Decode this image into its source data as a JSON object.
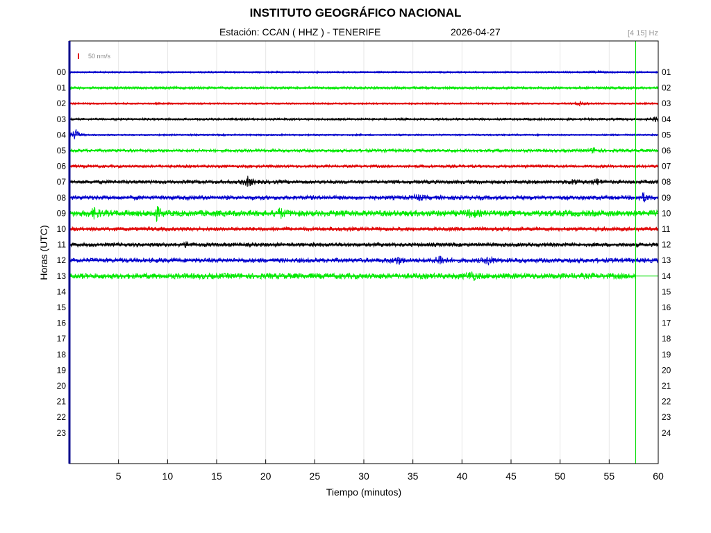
{
  "header": {
    "title": "INSTITUTO GEOGRÁFICO NACIONAL",
    "station": "Estación:  CCAN ( HHZ ) - TENERIFE",
    "date": "2026-04-27",
    "band": "[4 15] Hz",
    "scale": "50 nm/s"
  },
  "chart_data": {
    "type": "line",
    "subtype": "helicorder",
    "xlabel": "Tiempo (minutos)",
    "ylabel": "Horas (UTC)",
    "xlim": [
      0,
      60
    ],
    "x_ticks": [
      5,
      10,
      15,
      20,
      25,
      30,
      35,
      40,
      45,
      50,
      55,
      60
    ],
    "left_hour_labels": [
      "00",
      "01",
      "02",
      "03",
      "04",
      "05",
      "06",
      "07",
      "08",
      "09",
      "10",
      "11",
      "12",
      "13",
      "14",
      "15",
      "16",
      "17",
      "18",
      "19",
      "20",
      "21",
      "22",
      "23"
    ],
    "right_hour_labels": [
      "01",
      "02",
      "03",
      "04",
      "05",
      "06",
      "07",
      "08",
      "09",
      "10",
      "11",
      "12",
      "13",
      "14",
      "15",
      "16",
      "17",
      "18",
      "19",
      "20",
      "21",
      "22",
      "23",
      "24"
    ],
    "current_time_minute": 57.7,
    "grid": "vertical",
    "trace_colors": [
      "#0000cc",
      "#00e800",
      "#e00000",
      "#000000"
    ],
    "traces": [
      {
        "hour": "00",
        "color": "#0000cc",
        "amplitude": 1.2,
        "end_minute": 60,
        "events": [
          [
            54,
            1.5
          ]
        ]
      },
      {
        "hour": "01",
        "color": "#00e800",
        "amplitude": 1.8,
        "end_minute": 60,
        "events": []
      },
      {
        "hour": "02",
        "color": "#e00000",
        "amplitude": 1.2,
        "end_minute": 60,
        "events": [
          [
            52,
            3
          ]
        ]
      },
      {
        "hour": "03",
        "color": "#000000",
        "amplitude": 1.5,
        "end_minute": 60,
        "events": [
          [
            59.8,
            4
          ]
        ]
      },
      {
        "hour": "04",
        "color": "#0000cc",
        "amplitude": 1.2,
        "end_minute": 60,
        "events": [
          [
            0.6,
            9
          ]
        ]
      },
      {
        "hour": "05",
        "color": "#00e800",
        "amplitude": 2.2,
        "end_minute": 60,
        "events": [
          [
            53.5,
            4
          ]
        ]
      },
      {
        "hour": "06",
        "color": "#e00000",
        "amplitude": 2.0,
        "end_minute": 60,
        "events": []
      },
      {
        "hour": "07",
        "color": "#000000",
        "amplitude": 2.6,
        "end_minute": 60,
        "events": [
          [
            18.2,
            7
          ],
          [
            51.5,
            4
          ],
          [
            53.8,
            4
          ]
        ]
      },
      {
        "hour": "08",
        "color": "#0000cc",
        "amplitude": 3.0,
        "end_minute": 60,
        "events": [
          [
            35.5,
            4
          ],
          [
            58.5,
            6
          ]
        ]
      },
      {
        "hour": "09",
        "color": "#00e800",
        "amplitude": 4.2,
        "end_minute": 60,
        "events": [
          [
            2.6,
            7
          ],
          [
            8.9,
            8
          ],
          [
            21.5,
            6
          ],
          [
            41,
            5
          ]
        ]
      },
      {
        "hour": "10",
        "color": "#e00000",
        "amplitude": 2.8,
        "end_minute": 60,
        "events": []
      },
      {
        "hour": "11",
        "color": "#000000",
        "amplitude": 2.8,
        "end_minute": 60,
        "events": [
          [
            12,
            3
          ]
        ]
      },
      {
        "hour": "12",
        "color": "#0000cc",
        "amplitude": 3.2,
        "end_minute": 60,
        "events": [
          [
            33.5,
            5
          ],
          [
            37.8,
            8
          ],
          [
            42.8,
            6
          ]
        ]
      },
      {
        "hour": "13",
        "color": "#00e800",
        "amplitude": 4.0,
        "end_minute": 57.7,
        "events": [
          [
            41,
            6
          ]
        ]
      }
    ]
  }
}
